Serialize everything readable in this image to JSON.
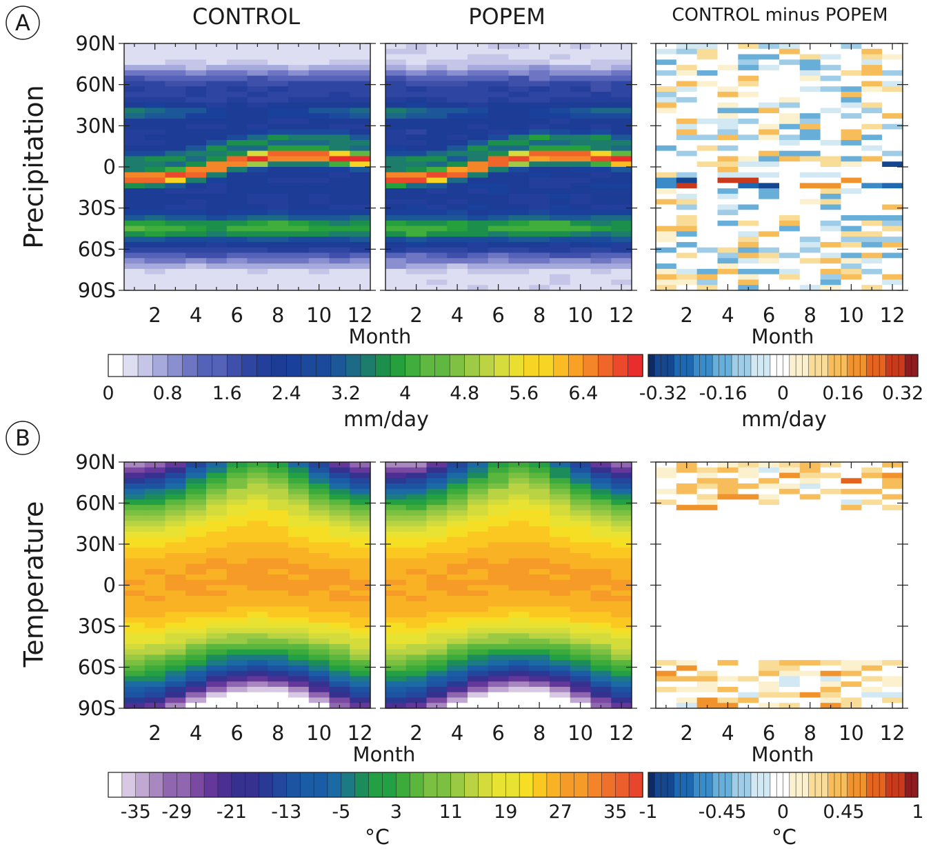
{
  "titles": {
    "control": "CONTROL",
    "popem": "POPEM",
    "diff": "CONTROL minus POPEM"
  },
  "panels": [
    {
      "label": "A",
      "row_label": "Precipitation",
      "x_label": "Month",
      "unit": "mm/day",
      "diff_unit": "mm/day"
    },
    {
      "label": "B",
      "row_label": "Temperature",
      "x_label": "Month",
      "unit": "°C",
      "diff_unit": "°C"
    }
  ],
  "chart_data": [
    {
      "type": "heatmap",
      "panel": "A",
      "variable": "Precipitation",
      "x": [
        1,
        2,
        3,
        4,
        5,
        6,
        7,
        8,
        9,
        10,
        11,
        12
      ],
      "xticks": [
        "2",
        "4",
        "6",
        "8",
        "10",
        "12"
      ],
      "xlabel": "Month",
      "ylabel": "Precipitation",
      "ylim": [
        -90,
        90
      ],
      "yticks": [
        "90N",
        "60N",
        "30N",
        "0",
        "30S",
        "60S",
        "90S"
      ],
      "colorbar": {
        "unit": "mm/day",
        "range": [
          0,
          7.2
        ],
        "ticks": [
          "0",
          "0.8",
          "1.6",
          "2.4",
          "3.2",
          "4",
          "4.8",
          "5.6",
          "6.4"
        ]
      },
      "diff_colorbar": {
        "unit": "mm/day",
        "range": [
          -0.36,
          0.36
        ],
        "ticks": [
          "-0.32",
          "-0.16",
          "0",
          "0.16",
          "0.32"
        ]
      },
      "features": {
        "itcz_max_mm_day": 7.0,
        "itcz_lat_by_month": [
          -8,
          -8,
          -7,
          -4,
          0,
          4,
          6,
          8,
          8,
          8,
          7,
          5
        ],
        "southern_storm_track_lat": -45,
        "southern_storm_track_mm_day": 3.6,
        "northern_storm_track_lat": 40,
        "northern_storm_track_mm_day": 3.0,
        "polar_min_mm_day": 0.3
      },
      "series": [
        {
          "name": "CONTROL",
          "panel": "control"
        },
        {
          "name": "POPEM",
          "panel": "popem"
        },
        {
          "name": "CONTROL minus POPEM",
          "panel": "diff",
          "max_abs": 0.3
        }
      ]
    },
    {
      "type": "heatmap",
      "panel": "B",
      "variable": "Temperature",
      "x": [
        1,
        2,
        3,
        4,
        5,
        6,
        7,
        8,
        9,
        10,
        11,
        12
      ],
      "xticks": [
        "2",
        "4",
        "6",
        "8",
        "10",
        "12"
      ],
      "xlabel": "Month",
      "ylabel": "Temperature",
      "ylim": [
        -90,
        90
      ],
      "yticks": [
        "90N",
        "60N",
        "30N",
        "0",
        "30S",
        "60S",
        "90S"
      ],
      "colorbar": {
        "unit": "°C",
        "range": [
          -39,
          39
        ],
        "ticks": [
          "-35",
          "-29",
          "-21",
          "-13",
          "-5",
          "3",
          "11",
          "19",
          "27",
          "35"
        ]
      },
      "diff_colorbar": {
        "unit": "°C",
        "range": [
          -1,
          1
        ],
        "ticks": [
          "-1",
          "-0.45",
          "0",
          "0.45",
          "1"
        ]
      },
      "features": {
        "tropical_max_c": 28,
        "north_pole_min_c": -33,
        "north_pole_max_c": 0,
        "south_pole_min_c": -60,
        "south_pole_max_c": -25
      },
      "series": [
        {
          "name": "CONTROL",
          "panel": "control"
        },
        {
          "name": "POPEM",
          "panel": "popem"
        },
        {
          "name": "CONTROL minus POPEM",
          "panel": "diff",
          "max_abs": 0.8
        }
      ]
    }
  ]
}
